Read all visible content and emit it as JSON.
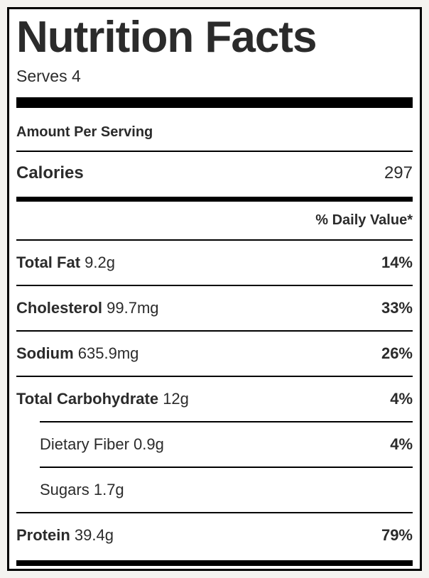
{
  "label": {
    "title": "Nutrition Facts",
    "serves": "Serves 4",
    "amount_per_serving": "Amount Per Serving",
    "calories_label": "Calories",
    "calories_value": "297",
    "daily_value_header": "% Daily Value*",
    "rows": [
      {
        "name": "Total Fat",
        "amount": "9.2g",
        "dv": "14%"
      },
      {
        "name": "Cholesterol",
        "amount": "99.7mg",
        "dv": "33%"
      },
      {
        "name": "Sodium",
        "amount": "635.9mg",
        "dv": "26%"
      },
      {
        "name": "Total Carbohydrate",
        "amount": "12g",
        "dv": "4%"
      },
      {
        "name": "Dietary Fiber",
        "amount": "0.9g",
        "dv": "4%"
      },
      {
        "name": "Sugars",
        "amount": "1.7g",
        "dv": ""
      },
      {
        "name": "Protein",
        "amount": "39.4g",
        "dv": "79%"
      }
    ],
    "colors": {
      "text": "#2b2b2b",
      "rule_black": "#000000",
      "label_background": "#ffffff",
      "page_background": "#f4f3f0"
    }
  }
}
